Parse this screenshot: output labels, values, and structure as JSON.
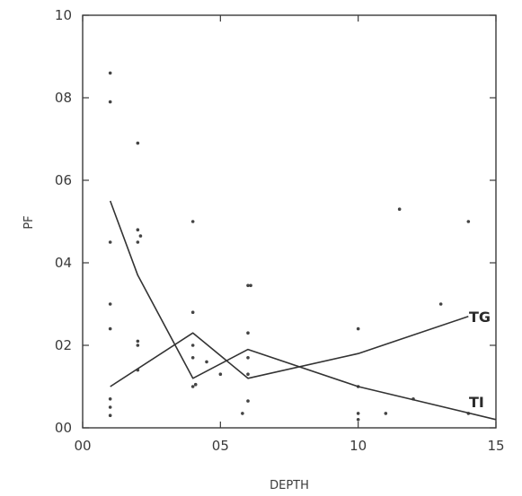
{
  "chart_data": {
    "type": "scatter",
    "title": "",
    "xlabel": "DEPTH",
    "ylabel": "PF",
    "xlim": [
      0.0,
      1.5
    ],
    "ylim": [
      0.0,
      1.0
    ],
    "grid": false,
    "x_ticks": [
      0.0,
      0.5,
      1.0,
      1.5
    ],
    "x_tick_labels": [
      "00",
      "05",
      "10",
      "15"
    ],
    "y_ticks": [
      0.0,
      0.2,
      0.4,
      0.6,
      0.8,
      1.0
    ],
    "y_tick_labels": [
      "00",
      "02",
      "04",
      "06",
      "08",
      "10"
    ],
    "points": [
      {
        "x": 0.1,
        "y": 0.86
      },
      {
        "x": 0.1,
        "y": 0.79
      },
      {
        "x": 0.1,
        "y": 0.45
      },
      {
        "x": 0.1,
        "y": 0.3
      },
      {
        "x": 0.1,
        "y": 0.24
      },
      {
        "x": 0.1,
        "y": 0.07
      },
      {
        "x": 0.1,
        "y": 0.05
      },
      {
        "x": 0.1,
        "y": 0.03
      },
      {
        "x": 0.2,
        "y": 0.69
      },
      {
        "x": 0.2,
        "y": 0.48
      },
      {
        "x": 0.21,
        "y": 0.465
      },
      {
        "x": 0.2,
        "y": 0.45
      },
      {
        "x": 0.2,
        "y": 0.21
      },
      {
        "x": 0.2,
        "y": 0.2
      },
      {
        "x": 0.2,
        "y": 0.14
      },
      {
        "x": 0.4,
        "y": 0.5
      },
      {
        "x": 0.4,
        "y": 0.28
      },
      {
        "x": 0.4,
        "y": 0.2
      },
      {
        "x": 0.4,
        "y": 0.17
      },
      {
        "x": 0.4,
        "y": 0.1
      },
      {
        "x": 0.41,
        "y": 0.105
      },
      {
        "x": 0.45,
        "y": 0.16
      },
      {
        "x": 0.5,
        "y": 0.13
      },
      {
        "x": 0.6,
        "y": 0.345
      },
      {
        "x": 0.61,
        "y": 0.345
      },
      {
        "x": 0.6,
        "y": 0.23
      },
      {
        "x": 0.6,
        "y": 0.17
      },
      {
        "x": 0.6,
        "y": 0.13
      },
      {
        "x": 0.6,
        "y": 0.065
      },
      {
        "x": 0.58,
        "y": 0.035
      },
      {
        "x": 1.0,
        "y": 0.24
      },
      {
        "x": 1.0,
        "y": 0.1
      },
      {
        "x": 1.0,
        "y": 0.035
      },
      {
        "x": 1.0,
        "y": 0.02
      },
      {
        "x": 1.1,
        "y": 0.035
      },
      {
        "x": 1.15,
        "y": 0.53
      },
      {
        "x": 1.3,
        "y": 0.3
      },
      {
        "x": 1.2,
        "y": 0.07
      },
      {
        "x": 1.4,
        "y": 0.5
      },
      {
        "x": 1.4,
        "y": 0.035
      }
    ],
    "series": [
      {
        "name": "TG",
        "x": [
          0.1,
          0.4,
          0.6,
          1.0,
          1.4
        ],
        "y": [
          0.1,
          0.23,
          0.12,
          0.18,
          0.27
        ]
      },
      {
        "name": "TI",
        "x": [
          0.1,
          0.2,
          0.4,
          0.6,
          1.0,
          1.5
        ],
        "y": [
          0.55,
          0.37,
          0.12,
          0.19,
          0.1,
          0.02
        ]
      }
    ],
    "annotations": [
      "TG",
      "TI"
    ]
  },
  "colors": {
    "axis": "#3a3a3a",
    "line": "#333333",
    "point": "#444444",
    "background": "#ffffff"
  }
}
